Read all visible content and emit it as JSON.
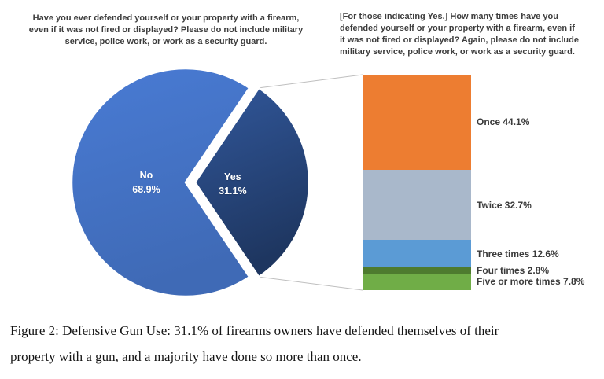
{
  "figure": {
    "caption_lines": [
      "Figure 2:  Defensive Gun Use:  31.1% of firearms owners have defended themselves of their",
      "property with a gun, and a majority have done so more than once."
    ]
  },
  "styles": {
    "title_text_color": "#3d3d3d",
    "bar_label_text_color": "#3b3b3b",
    "pie_label_text_color": "#ffffff",
    "connector_line_color": "#bfbfbf",
    "background": "#ffffff"
  },
  "chart_data": [
    {
      "type": "pie",
      "title_lines": [
        "Have you ever defended yourself or your property with a firearm,",
        "even if it was not fired or displayed? Please do not include military",
        "service, police work, or work as a security guard."
      ],
      "categories": [
        "No",
        "Yes"
      ],
      "values": [
        68.9,
        31.1
      ],
      "unit": "%",
      "colors": [
        "#4472C4",
        "#264478"
      ],
      "exploded_slice": "Yes",
      "labels_inside": true,
      "legend": "none",
      "grid": false
    },
    {
      "type": "bar",
      "variant": "single-stacked-column-of-pie",
      "title_lines": [
        "[For those indicating Yes.] How many times have you",
        "defended yourself or your property with a firearm, even if",
        "it was not fired or displayed? Again, please do not include",
        "military service, police work, or work as a security guard."
      ],
      "categories": [
        "Once",
        "Twice",
        "Three times",
        "Four times",
        "Five or more times"
      ],
      "values": [
        44.1,
        32.7,
        12.6,
        2.8,
        7.8
      ],
      "unit": "%",
      "colors": [
        "#ED7D31",
        "#A9B8CB",
        "#5B9BD5",
        "#4E7B2F",
        "#70AD47"
      ],
      "ylim": [
        0,
        100
      ],
      "legend": "none",
      "grid": false,
      "label_position": "right-of-segment"
    }
  ]
}
